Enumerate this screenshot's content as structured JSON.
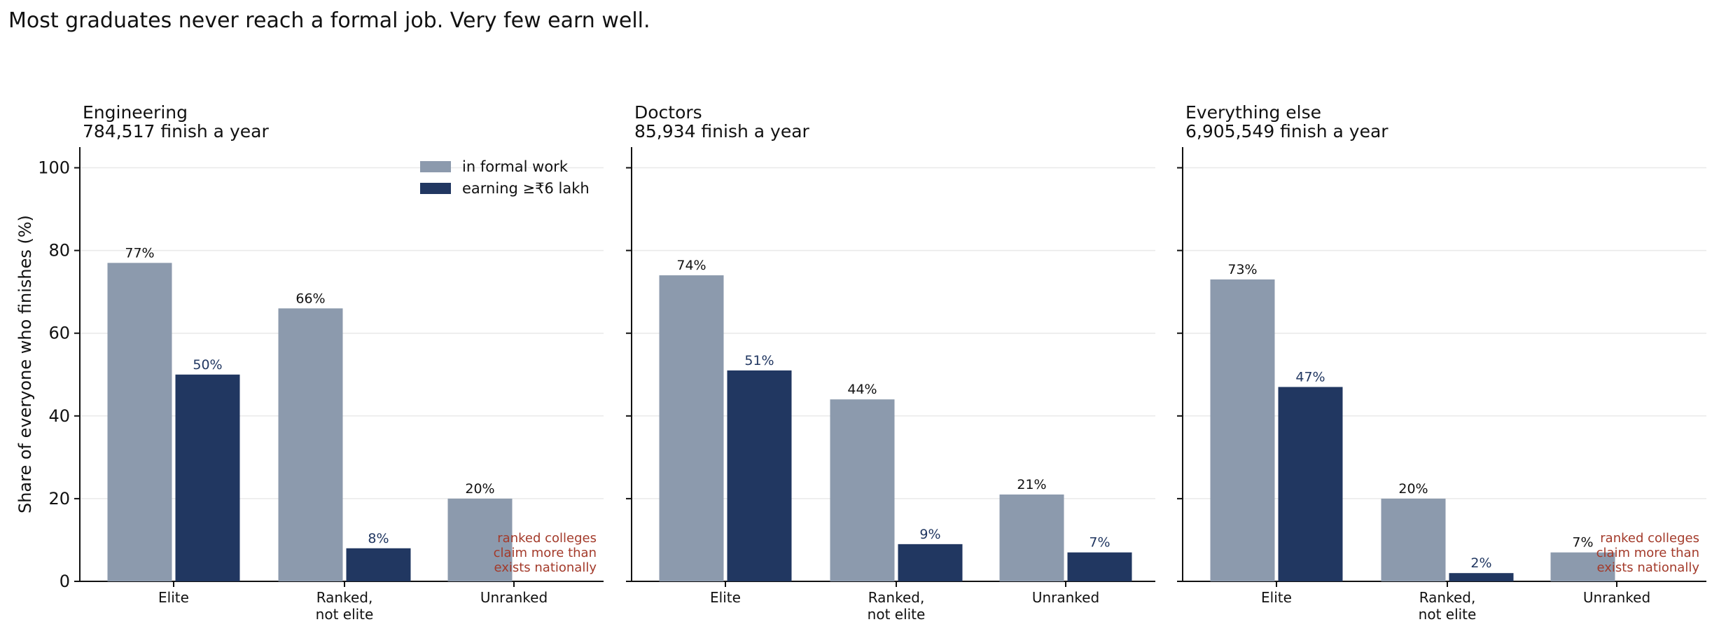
{
  "headline": "Most graduates never reach a formal job. Very few earn well.",
  "chart_data": {
    "type": "bar",
    "ylabel": "Share of everyone who finishes (%)",
    "ylim": [
      0,
      105
    ],
    "yticks": [
      0,
      20,
      40,
      60,
      80,
      100
    ],
    "grid": true,
    "legend_placement": "top-right",
    "colors": {
      "formal": "#8c9aad",
      "earning": "#213761",
      "note": "#a33a2a"
    },
    "series": [
      {
        "key": "formal",
        "name": "in formal work"
      },
      {
        "key": "earning",
        "name": "earning ≥₹6 lakh"
      }
    ],
    "panels": [
      {
        "title": "Engineering",
        "subtitle": "784,517 finish a year",
        "categories": [
          [
            "Elite"
          ],
          [
            "Ranked,",
            "not elite"
          ],
          [
            "Unranked"
          ]
        ],
        "formal": [
          77,
          66,
          20
        ],
        "earning": [
          50,
          8,
          null
        ],
        "formal_labels": [
          "77%",
          "66%",
          "20%"
        ],
        "earning_labels": [
          "50%",
          "8%",
          ""
        ],
        "note": [
          "ranked colleges",
          "claim more than",
          "exists nationally"
        ]
      },
      {
        "title": "Doctors",
        "subtitle": "85,934 finish a year",
        "categories": [
          [
            "Elite"
          ],
          [
            "Ranked,",
            "not elite"
          ],
          [
            "Unranked"
          ]
        ],
        "formal": [
          74,
          44,
          21
        ],
        "earning": [
          51,
          9,
          7
        ],
        "formal_labels": [
          "74%",
          "44%",
          "21%"
        ],
        "earning_labels": [
          "51%",
          "9%",
          "7%"
        ],
        "note": null
      },
      {
        "title": "Everything else",
        "subtitle": "6,905,549 finish a year",
        "categories": [
          [
            "Elite"
          ],
          [
            "Ranked,",
            "not elite"
          ],
          [
            "Unranked"
          ]
        ],
        "formal": [
          73,
          20,
          7
        ],
        "earning": [
          47,
          2,
          null
        ],
        "formal_labels": [
          "73%",
          "20%",
          "7%"
        ],
        "earning_labels": [
          "47%",
          "2%",
          ""
        ],
        "note": [
          "ranked colleges",
          "claim more than",
          "exists nationally"
        ]
      }
    ]
  }
}
